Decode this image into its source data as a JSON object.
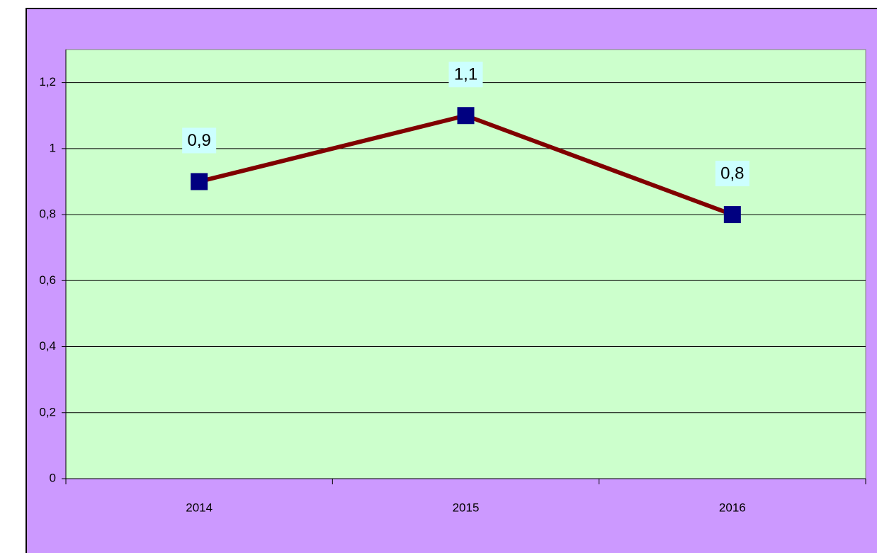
{
  "chart_data": {
    "type": "line",
    "categories": [
      "2014",
      "2015",
      "2016"
    ],
    "values": [
      0.9,
      1.1,
      0.8
    ],
    "value_labels": [
      "0,9",
      "1,1",
      "0,8"
    ],
    "color": "#800000",
    "marker_color": "#000080",
    "marker": "square",
    "ylim": [
      0,
      1.3
    ],
    "yticks": [
      0,
      {
        "value": 0.2,
        "label": "0,2"
      },
      {
        "value": 0.4,
        "label": "0,4"
      },
      {
        "value": 0.6,
        "label": "0,6"
      },
      {
        "value": 0.8,
        "label": "0,8"
      },
      1,
      {
        "value": 1.2,
        "label": "1,2"
      }
    ],
    "grid": true
  }
}
